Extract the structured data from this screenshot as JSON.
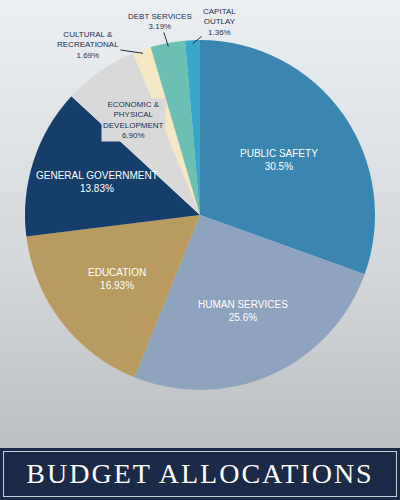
{
  "chart_data": {
    "type": "pie",
    "title": "BUDGET ALLOCATIONS",
    "categories": [
      "PUBLIC SAFETY",
      "HUMAN SERVICES",
      "EDUCATION",
      "GENERAL GOVERNMENT",
      "ECONOMIC & PHYSICAL DEVELOPMENT",
      "CULTURAL & RECREATIONAL",
      "DEBT SERVICES",
      "CAPITAL OUTLAY"
    ],
    "values": [
      30.5,
      25.6,
      16.93,
      13.83,
      6.9,
      1.69,
      3.19,
      1.36
    ],
    "value_labels": [
      "30.5%",
      "25.6%",
      "16.93%",
      "13.83%",
      "6.90%",
      "1.69%",
      "3.19%",
      "1.36%"
    ],
    "colors": [
      "#3a86b0",
      "#8ea3bd",
      "#b99a60",
      "#153e6b",
      "#d9d9d9",
      "#f3e7c4",
      "#6bbfb3",
      "#3aa6c9"
    ],
    "data_labels": true
  }
}
